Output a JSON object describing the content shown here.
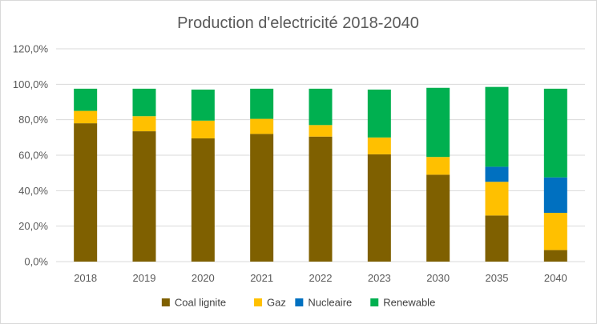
{
  "chart_data": {
    "type": "bar",
    "stacked": true,
    "title": "Production d'electricité 2018-2040",
    "xlabel": "",
    "ylabel": "",
    "ylim": [
      0,
      120
    ],
    "y_ticks": [
      0,
      20,
      40,
      60,
      80,
      100,
      120
    ],
    "y_tick_labels": [
      "0,0%",
      "20,0%",
      "40,0%",
      "60,0%",
      "80,0%",
      "100,0%",
      "120,0%"
    ],
    "grid": true,
    "legend_position": "bottom",
    "categories": [
      "2018",
      "2019",
      "2020",
      "2021",
      "2022",
      "2023",
      "2030",
      "2035",
      "2040"
    ],
    "series": [
      {
        "name": "Coal lignite",
        "color": "#7f6000",
        "values": [
          78,
          73.5,
          69.5,
          72,
          70.5,
          60.5,
          49,
          26,
          6.5
        ]
      },
      {
        "name": "Gaz",
        "color": "#ffc000",
        "values": [
          7,
          8.5,
          10,
          8.5,
          6.5,
          9.5,
          10,
          19,
          21
        ]
      },
      {
        "name": "Nucleaire",
        "color": "#0070c0",
        "values": [
          0,
          0,
          0,
          0,
          0,
          0,
          0,
          8.5,
          20
        ]
      },
      {
        "name": "Renewable",
        "color": "#00b050",
        "values": [
          12.5,
          15.5,
          17.5,
          17,
          20.5,
          27,
          39,
          45,
          50
        ]
      }
    ]
  }
}
